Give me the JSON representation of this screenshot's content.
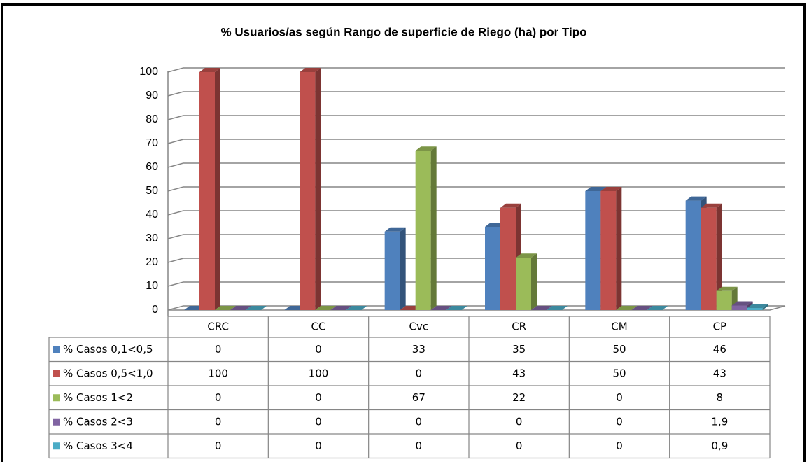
{
  "chart_data": {
    "type": "bar",
    "title": "% Usuarios/as según Rango de superficie de Riego (ha) por Tipo",
    "categories": [
      "CRC",
      "CC",
      "Cvc",
      "CR",
      "CM",
      "CP"
    ],
    "series": [
      {
        "name": "% Casos 0,1<0,5",
        "color": "#4f81bd",
        "values": [
          0,
          0,
          33,
          35,
          50,
          46
        ]
      },
      {
        "name": "% Casos 0,5<1,0",
        "color": "#c0504d",
        "values": [
          100,
          100,
          0,
          43,
          50,
          43
        ]
      },
      {
        "name": "% Casos 1<2",
        "color": "#9bbb59",
        "values": [
          0,
          0,
          67,
          22,
          0,
          8
        ]
      },
      {
        "name": "% Casos 2<3",
        "color": "#8064a2",
        "values": [
          0,
          0,
          0,
          0,
          0,
          1.9
        ],
        "value_labels": [
          "0",
          "0",
          "0",
          "0",
          "0",
          "1,9"
        ]
      },
      {
        "name": "% Casos 3<4",
        "color": "#4bacc6",
        "values": [
          0,
          0,
          0,
          0,
          0,
          0.9
        ],
        "value_labels": [
          "0",
          "0",
          "0",
          "0",
          "0",
          "0,9"
        ]
      }
    ],
    "ylim": [
      0,
      100
    ],
    "yticks": [
      0,
      10,
      20,
      30,
      40,
      50,
      60,
      70,
      80,
      90,
      100
    ],
    "grid": true
  }
}
